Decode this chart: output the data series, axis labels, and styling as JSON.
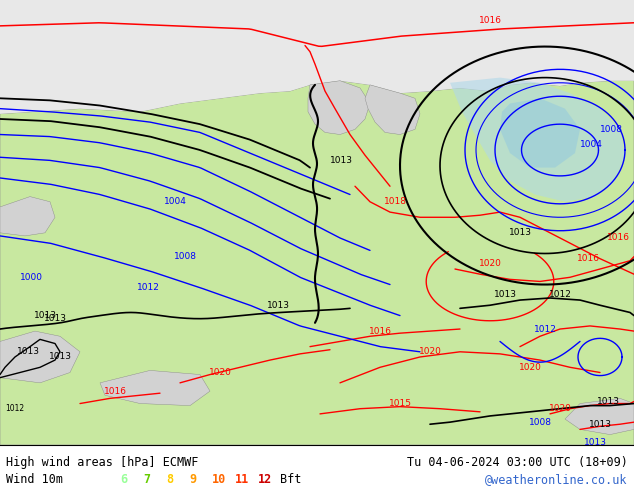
{
  "title_left_line1": "High wind areas [hPa] ECMWF",
  "title_left_line2": "Wind 10m",
  "title_right_line1": "Tu 04-06-2024 03:00 UTC (18+09)",
  "title_right_line2": "@weatheronline.co.uk",
  "bft_labels": [
    "6",
    "7",
    "8",
    "9",
    "10",
    "11",
    "12",
    "Bft"
  ],
  "bft_colors": [
    "#99ff99",
    "#66cc00",
    "#ffcc00",
    "#ff9900",
    "#ff6600",
    "#ff3300",
    "#cc0000",
    "#000000"
  ],
  "sea_color": "#d2d2d2",
  "land_color": "#c8e8a0",
  "arctic_color": "#e8e8e8",
  "depression_fill": "#b0d8e8",
  "fig_width": 6.34,
  "fig_height": 4.9,
  "dpi": 100
}
